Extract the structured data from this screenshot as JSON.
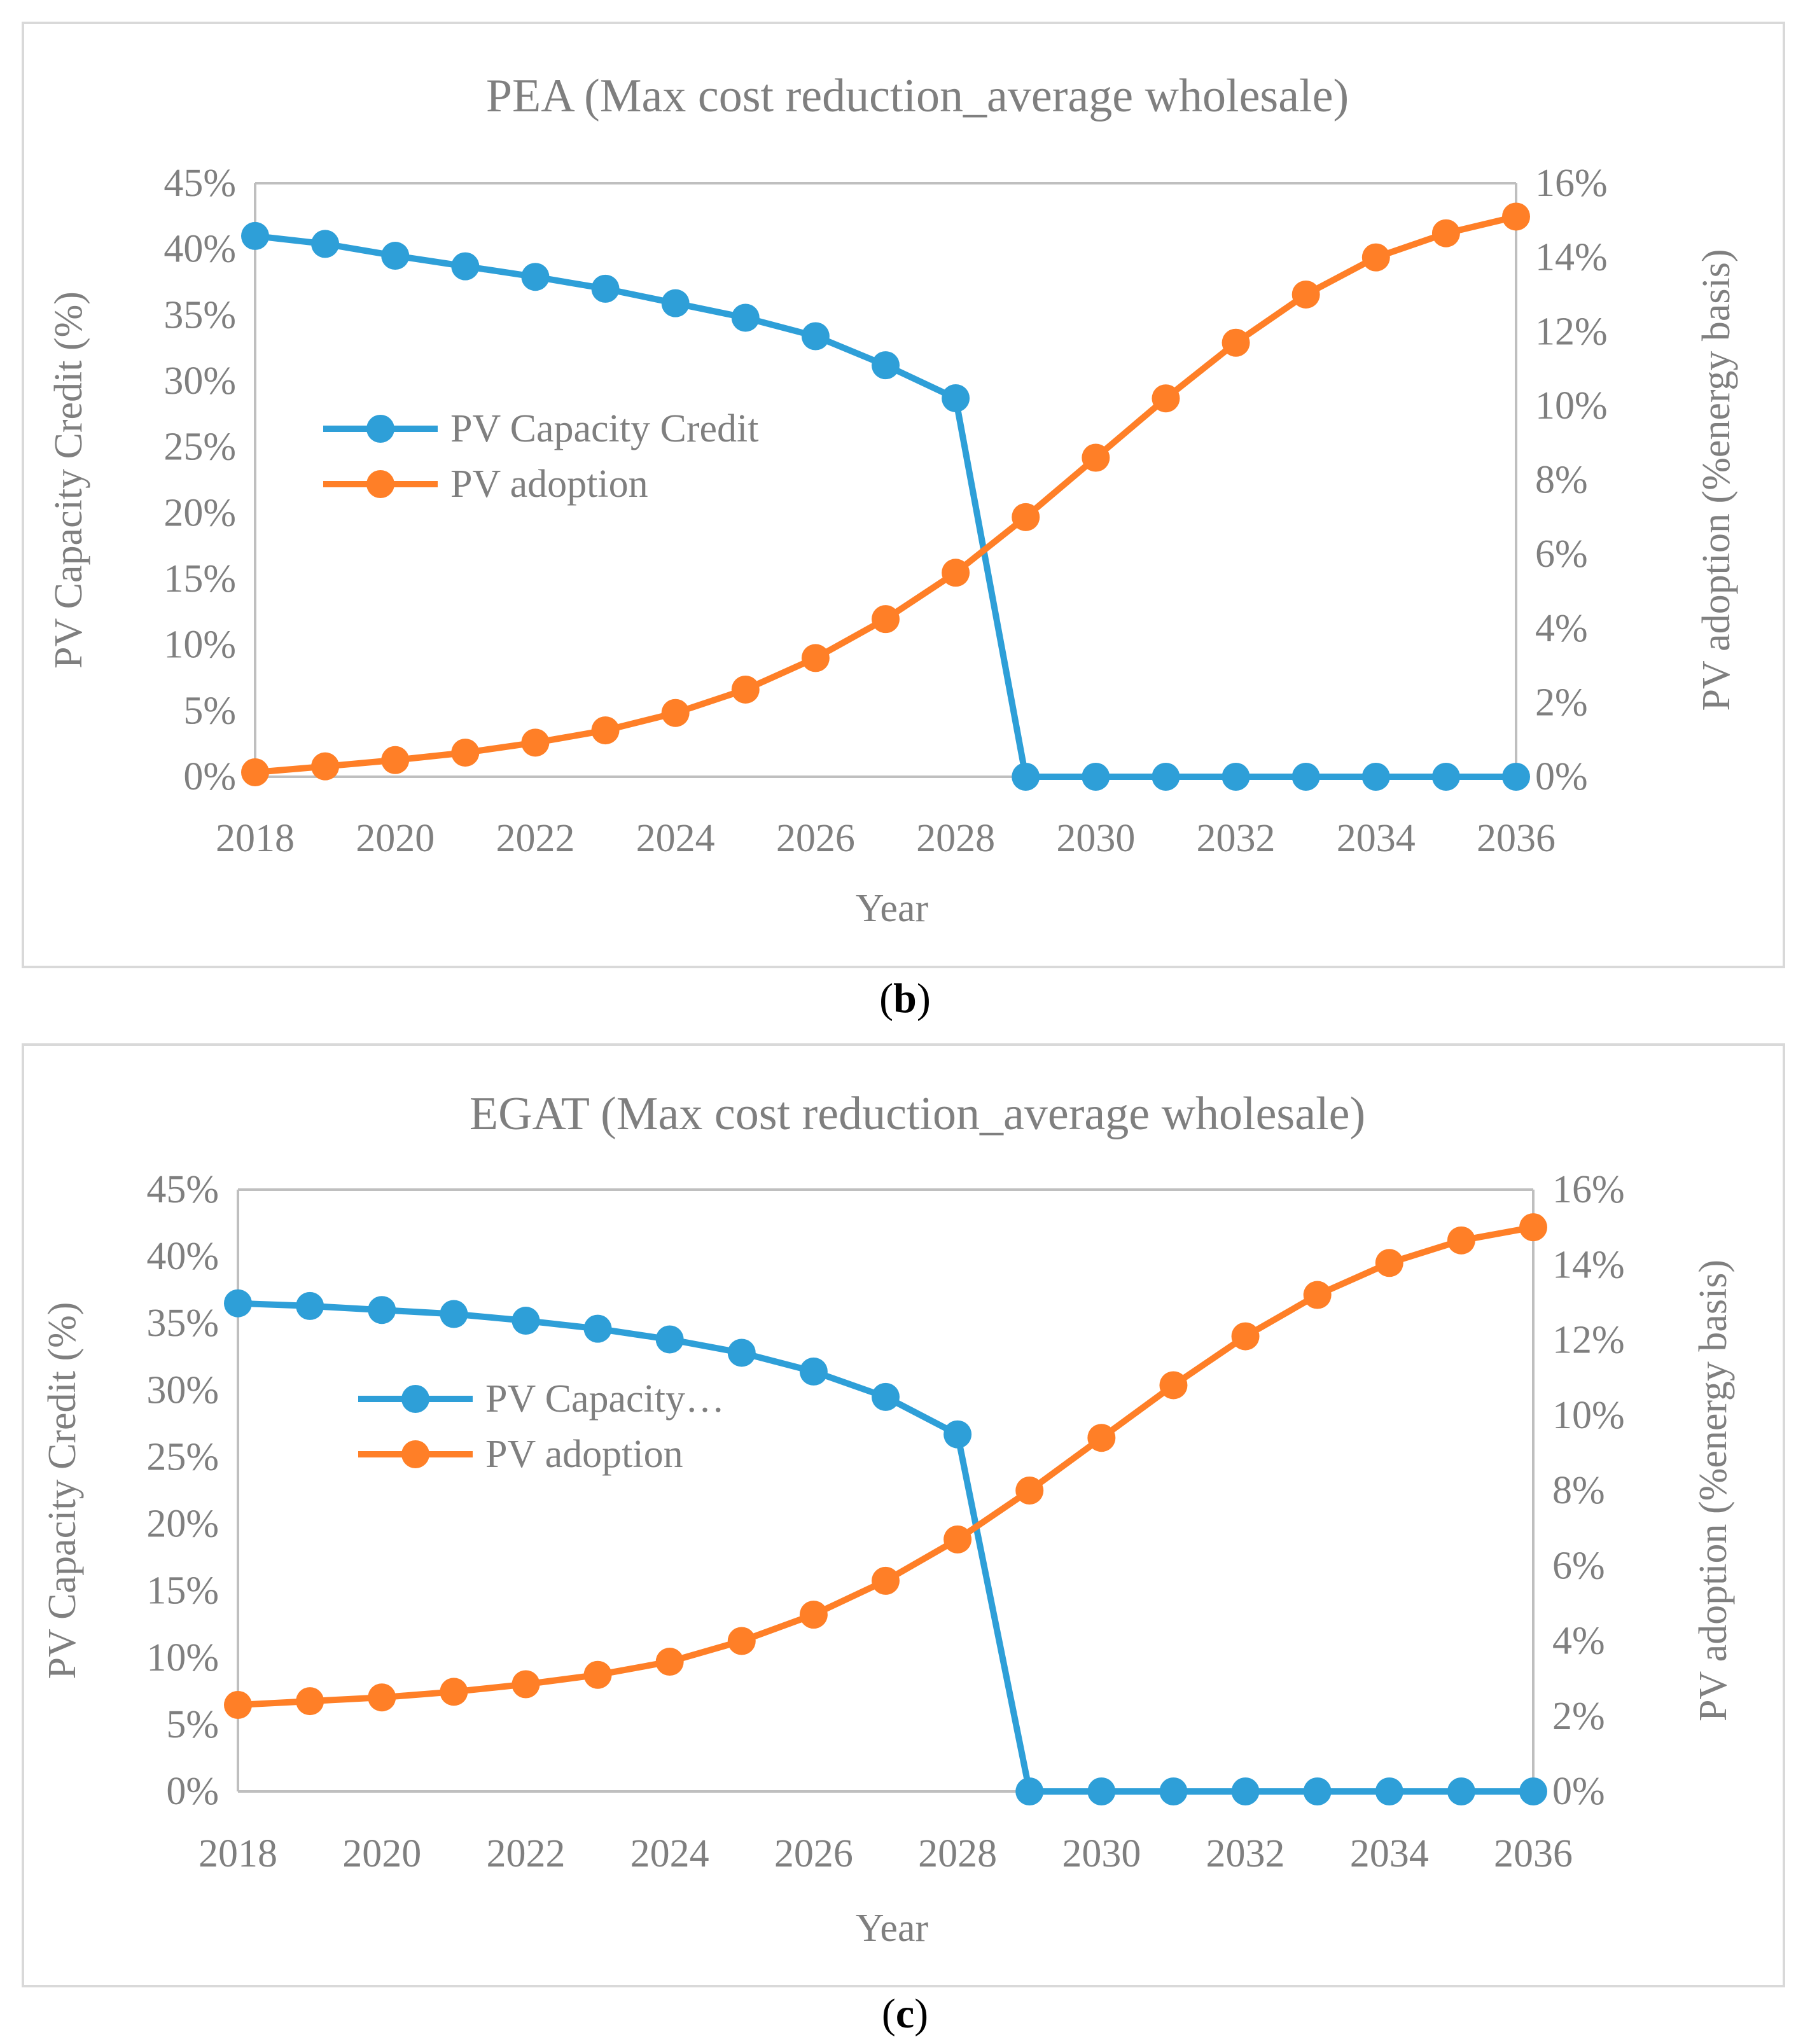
{
  "chart_data": [
    {
      "type": "line",
      "title": "PEA (Max cost reduction_average wholesale)",
      "caption": "b",
      "xlabel": "Year",
      "ylabel": "PV Capacity Credit (%)",
      "y2label": "PV adoption (%energy basis)",
      "x": [
        2018,
        2019,
        2020,
        2021,
        2022,
        2023,
        2024,
        2025,
        2026,
        2027,
        2028,
        2029,
        2030,
        2031,
        2032,
        2033,
        2034,
        2035,
        2036
      ],
      "xticks": [
        "2018",
        "2020",
        "2022",
        "2024",
        "2026",
        "2028",
        "2030",
        "2032",
        "2034",
        "2036"
      ],
      "ylim": [
        0,
        45
      ],
      "y2lim": [
        0,
        16
      ],
      "yticks": [
        "0%",
        "5%",
        "10%",
        "15%",
        "20%",
        "25%",
        "30%",
        "35%",
        "40%",
        "45%"
      ],
      "y2ticks": [
        "0%",
        "2%",
        "4%",
        "6%",
        "8%",
        "10%",
        "12%",
        "14%",
        "16%"
      ],
      "legend_position": "center-left",
      "series": [
        {
          "name": "PV Capacity Credit",
          "axis": "left",
          "color": "#2e9fd8",
          "values": [
            41.0,
            40.4,
            39.5,
            38.7,
            37.9,
            37.0,
            35.9,
            34.8,
            33.4,
            31.2,
            28.7,
            0,
            0,
            0,
            0,
            0,
            0,
            0,
            0
          ]
        },
        {
          "name": "PV adoption",
          "axis": "right",
          "color": "#ff7f27",
          "values": [
            0.12,
            0.28,
            0.45,
            0.65,
            0.92,
            1.25,
            1.72,
            2.35,
            3.2,
            4.25,
            5.5,
            7.0,
            8.6,
            10.2,
            11.7,
            13.0,
            14.0,
            14.65,
            15.1
          ]
        }
      ]
    },
    {
      "type": "line",
      "title": "EGAT (Max cost reduction_average wholesale)",
      "caption": "c",
      "xlabel": "Year",
      "ylabel": "PV Capacity Credit (%)",
      "y2label": "PV adoption (%energy basis)",
      "x": [
        2018,
        2019,
        2020,
        2021,
        2022,
        2023,
        2024,
        2025,
        2026,
        2027,
        2028,
        2029,
        2030,
        2031,
        2032,
        2033,
        2034,
        2035,
        2036
      ],
      "xticks": [
        "2018",
        "2020",
        "2022",
        "2024",
        "2026",
        "2028",
        "2030",
        "2032",
        "2034",
        "2036"
      ],
      "ylim": [
        0,
        45
      ],
      "y2lim": [
        0,
        16
      ],
      "yticks": [
        "0%",
        "5%",
        "10%",
        "15%",
        "20%",
        "25%",
        "30%",
        "35%",
        "40%",
        "45%"
      ],
      "y2ticks": [
        "0%",
        "2%",
        "4%",
        "6%",
        "8%",
        "10%",
        "12%",
        "14%",
        "16%"
      ],
      "legend_position": "center-left",
      "series": [
        {
          "name": "PV Capacity…",
          "axis": "left",
          "color": "#2e9fd8",
          "values": [
            36.5,
            36.3,
            36.0,
            35.7,
            35.2,
            34.6,
            33.8,
            32.8,
            31.4,
            29.5,
            26.7,
            0,
            0,
            0,
            0,
            0,
            0,
            0,
            0
          ]
        },
        {
          "name": "PV adoption",
          "axis": "right",
          "color": "#ff7f27",
          "values": [
            2.3,
            2.4,
            2.5,
            2.65,
            2.85,
            3.1,
            3.45,
            4.0,
            4.7,
            5.6,
            6.7,
            8.0,
            9.4,
            10.8,
            12.1,
            13.2,
            14.05,
            14.65,
            15.0
          ]
        }
      ]
    }
  ],
  "captions": [
    "b",
    "c"
  ]
}
